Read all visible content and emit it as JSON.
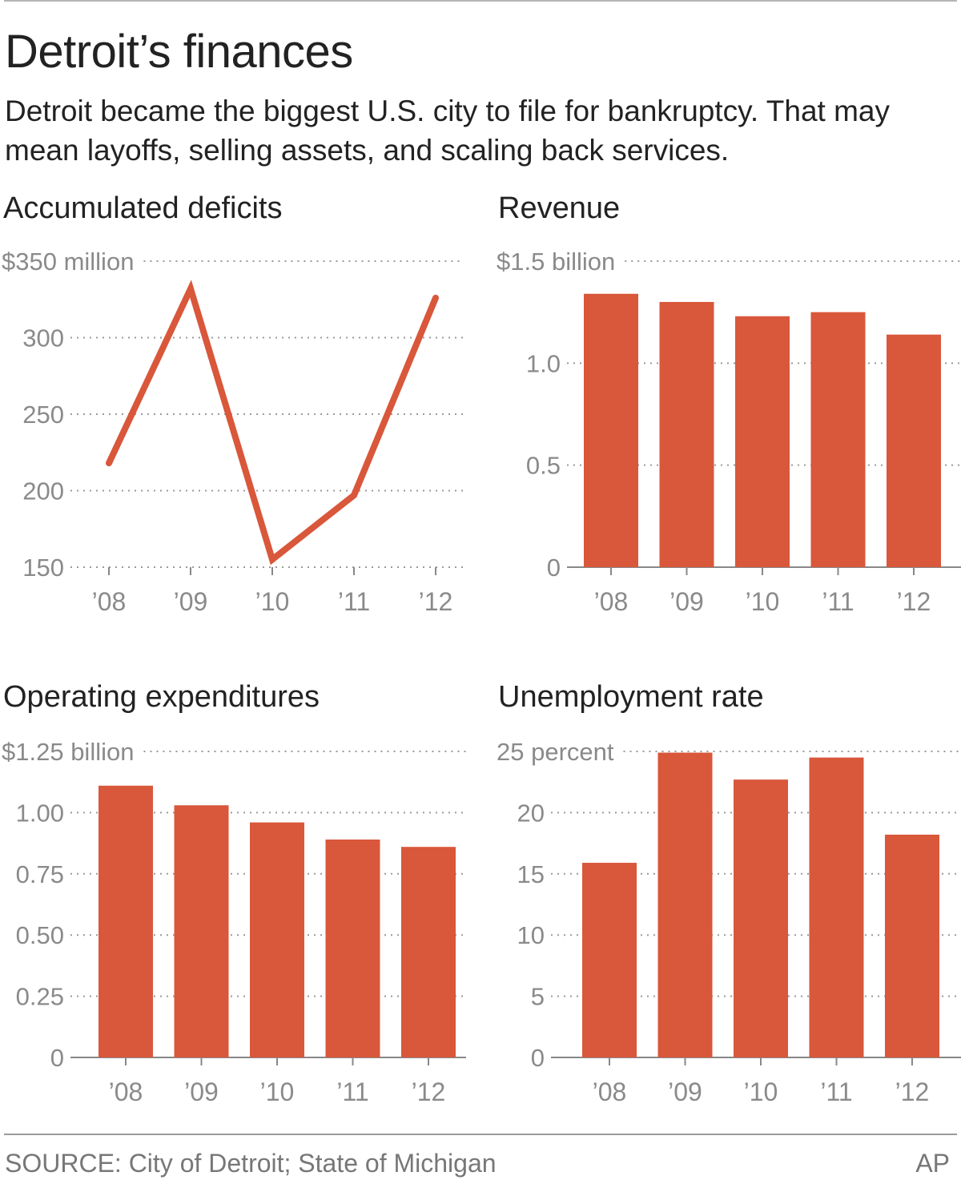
{
  "header": {
    "title": "Detroit’s finances",
    "subtitle": "Detroit became the biggest U.S. city to file for bankruptcy. That may mean layoffs, selling assets, and scaling back services."
  },
  "footer": {
    "source": "SOURCE: City of Detroit; State of Michigan",
    "credit": "AP"
  },
  "colors": {
    "accent": "#d9573a",
    "gridline": "#9a9a9a",
    "axis": "#888888",
    "tick_text": "#8a8a8a"
  },
  "chart_data": [
    {
      "type": "line",
      "title": "Accumulated deficits",
      "categories": [
        "’08",
        "’09",
        "’10",
        "’11",
        "’12"
      ],
      "values": [
        218,
        332,
        155,
        197,
        326
      ],
      "ylim": [
        150,
        350
      ],
      "yticks": [
        150,
        200,
        250,
        300,
        350
      ],
      "ytick_labels": [
        "150",
        "200",
        "250",
        "300",
        "$350 million"
      ],
      "grid": true
    },
    {
      "type": "bar",
      "title": "Revenue",
      "categories": [
        "’08",
        "’09",
        "’10",
        "’11",
        "’12"
      ],
      "values": [
        1.34,
        1.3,
        1.23,
        1.25,
        1.14
      ],
      "ylim": [
        0,
        1.5
      ],
      "yticks": [
        0,
        0.5,
        1.0,
        1.5
      ],
      "ytick_labels": [
        "0",
        "0.5",
        "1.0",
        "$1.5 billion"
      ],
      "grid": true
    },
    {
      "type": "bar",
      "title": "Operating expenditures",
      "categories": [
        "’08",
        "’09",
        "’10",
        "’11",
        "’12"
      ],
      "values": [
        1.11,
        1.03,
        0.96,
        0.89,
        0.86
      ],
      "ylim": [
        0,
        1.25
      ],
      "yticks": [
        0,
        0.25,
        0.5,
        0.75,
        1.0,
        1.25
      ],
      "ytick_labels": [
        "0",
        "0.25",
        "0.50",
        "0.75",
        "1.00",
        "$1.25 billion"
      ],
      "grid": true
    },
    {
      "type": "bar",
      "title": "Unemployment rate",
      "categories": [
        "’08",
        "’09",
        "’10",
        "’11",
        "’12"
      ],
      "values": [
        15.9,
        24.9,
        22.7,
        24.5,
        18.2
      ],
      "ylim": [
        0,
        25
      ],
      "yticks": [
        0,
        5,
        10,
        15,
        20,
        25
      ],
      "ytick_labels": [
        "0",
        "5",
        "10",
        "15",
        "20",
        "25 percent"
      ],
      "grid": true
    }
  ]
}
